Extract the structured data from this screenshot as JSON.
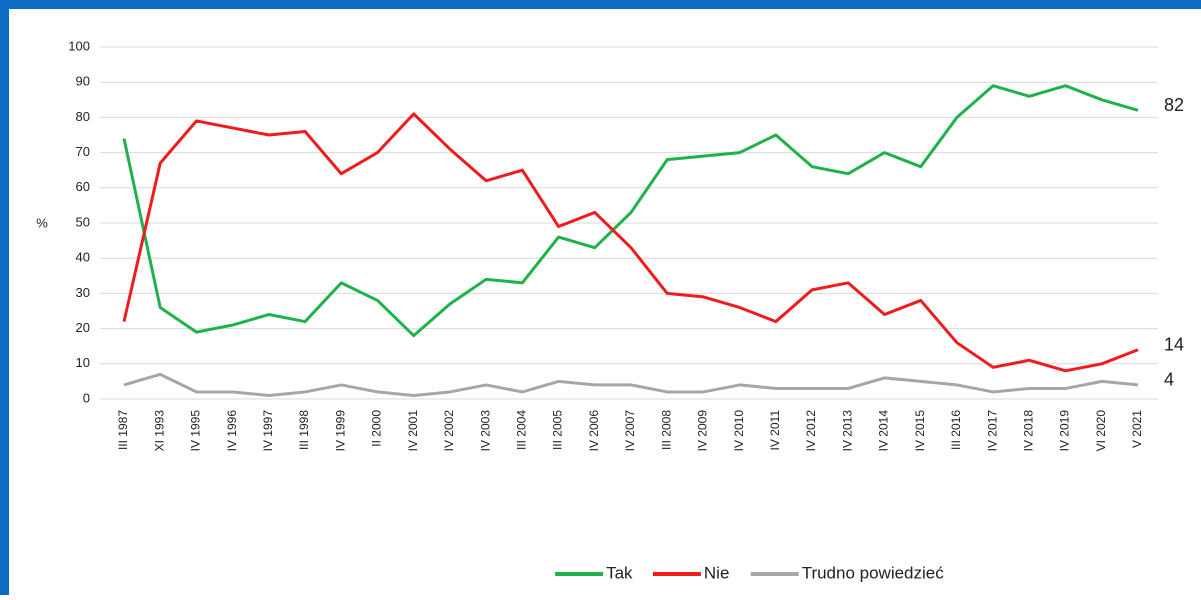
{
  "chart_data": {
    "type": "line",
    "y_label": "%",
    "categories": [
      "III 1987",
      "XI 1993",
      "IV 1995",
      "IV 1996",
      "IV 1997",
      "III 1998",
      "IV 1999",
      "II 2000",
      "IV 2001",
      "IV 2002",
      "IV 2003",
      "III 2004",
      "III 2005",
      "IV 2006",
      "IV 2007",
      "III 2008",
      "IV 2009",
      "IV 2010",
      "IV 2011",
      "IV 2012",
      "IV 2013",
      "IV 2014",
      "IV 2015",
      "III 2016",
      "IV 2017",
      "IV 2018",
      "IV 2019",
      "VI 2020",
      "V 2021"
    ],
    "series": [
      {
        "name": "Tak",
        "color": "#1fb24a",
        "values": [
          74,
          26,
          19,
          21,
          24,
          22,
          33,
          28,
          18,
          27,
          34,
          33,
          46,
          43,
          53,
          68,
          69,
          70,
          75,
          66,
          64,
          70,
          66,
          80,
          89,
          86,
          89,
          85,
          82
        ]
      },
      {
        "name": "Nie",
        "color": "#ee1c1c",
        "values": [
          22,
          67,
          79,
          77,
          75,
          76,
          64,
          70,
          81,
          71,
          62,
          65,
          49,
          53,
          43,
          30,
          29,
          26,
          22,
          31,
          33,
          24,
          28,
          16,
          9,
          11,
          8,
          10,
          14
        ]
      },
      {
        "name": "Trudno powiedzieć",
        "color": "#a6a6a6",
        "values": [
          4,
          7,
          2,
          2,
          1,
          2,
          4,
          2,
          1,
          2,
          4,
          2,
          5,
          4,
          4,
          2,
          2,
          4,
          3,
          3,
          3,
          6,
          5,
          4,
          2,
          3,
          3,
          5,
          4
        ]
      }
    ],
    "ylim": [
      0,
      100
    ],
    "yticks": [
      0,
      10,
      20,
      30,
      40,
      50,
      60,
      70,
      80,
      90,
      100
    ],
    "grid": true,
    "end_labels": true,
    "legend": "bottom"
  }
}
